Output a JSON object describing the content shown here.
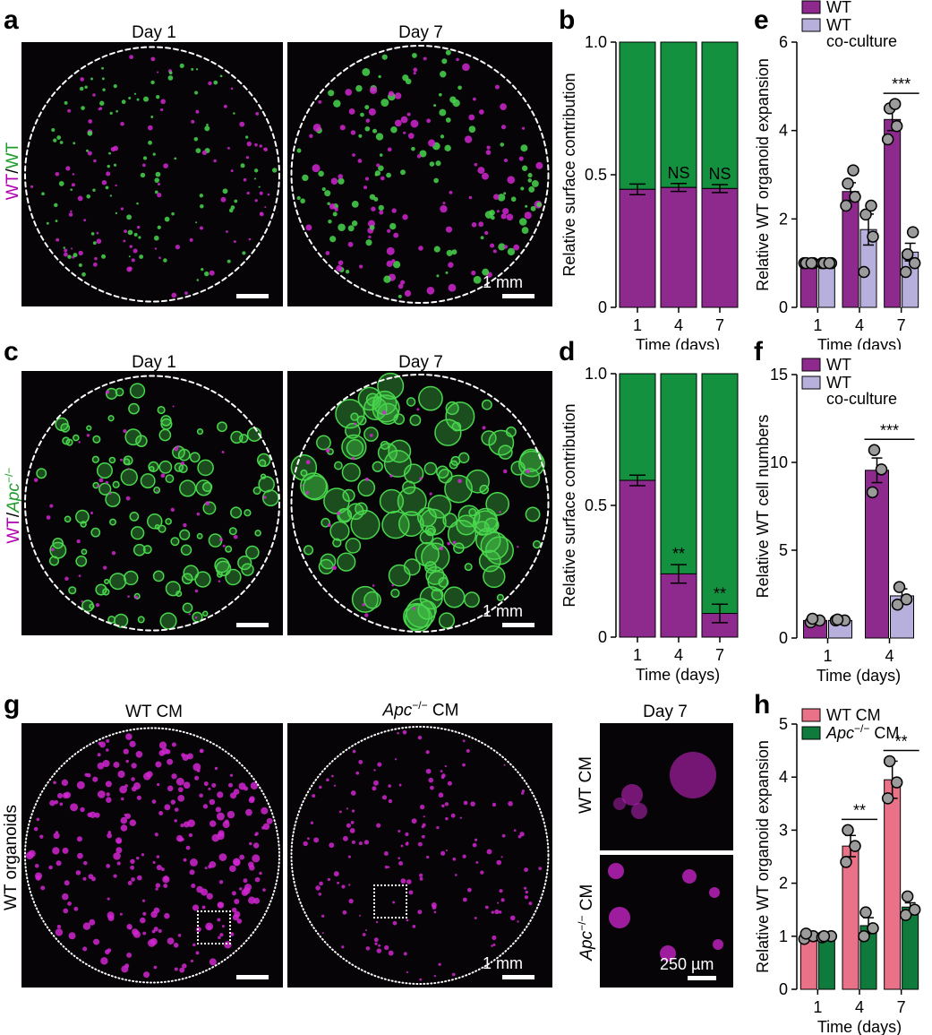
{
  "colors": {
    "purple": "#8e2a8e",
    "green": "#13913f",
    "lavender": "#b7b0dc",
    "pink": "#ea7288",
    "darkgreen": "#0e7a3c",
    "magenta_signal": "#d126d1",
    "green_signal": "#49d64d"
  },
  "panels": {
    "a": {
      "letter": "a",
      "day1": "Day 1",
      "day7": "Day 7",
      "side_label_part1": "WT",
      "side_label_sep": "/",
      "side_label_part2": "WT",
      "scale": "1 mm"
    },
    "c": {
      "letter": "c",
      "day1": "Day 1",
      "day7": "Day 7",
      "side_label_part1": "WT",
      "side_label_sep": "/",
      "side_label_part2": "Apc",
      "side_label_sup": "−/−",
      "scale": "1 mm"
    },
    "g": {
      "letter": "g",
      "title_left": "WT CM",
      "title_mid_italic": "Apc",
      "title_mid_sup": "−/−",
      "title_mid_rest": " CM",
      "title_right": "Day 7",
      "side_label": "WT organoids",
      "inset_top_label": "WT CM",
      "inset_bottom_italic": "Apc",
      "inset_bottom_sup": "−/−",
      "inset_bottom_rest": " CM",
      "scale": "1 mm",
      "scale_inset": "250 µm"
    },
    "b": {
      "letter": "b"
    },
    "d": {
      "letter": "d"
    },
    "e": {
      "letter": "e"
    },
    "f": {
      "letter": "f"
    },
    "h": {
      "letter": "h"
    }
  },
  "chart_data": [
    {
      "id": "b",
      "type": "bar",
      "stacked": true,
      "categories": [
        "1",
        "4",
        "7"
      ],
      "series": [
        {
          "values": [
            0.445,
            0.452,
            0.448
          ],
          "errors": [
            0.02,
            0.015,
            0.015
          ]
        },
        {
          "values": [
            0.555,
            0.548,
            0.552
          ]
        }
      ],
      "annotations": [
        "",
        "NS",
        "NS"
      ],
      "xlabel": "Time (days)",
      "ylabel": "Relative surface contribution",
      "ylim": [
        0,
        1
      ],
      "yticks": [
        "0",
        "0.5",
        "1.0"
      ]
    },
    {
      "id": "d",
      "type": "bar",
      "stacked": true,
      "categories": [
        "1",
        "4",
        "7"
      ],
      "series": [
        {
          "values": [
            0.595,
            0.24,
            0.09
          ],
          "errors": [
            0.02,
            0.035,
            0.035
          ]
        },
        {
          "values": [
            0.405,
            0.76,
            0.91
          ]
        }
      ],
      "annotations": [
        "",
        "**",
        "**"
      ],
      "xlabel": "Time (days)",
      "ylabel": "Relative surface contribution",
      "ylim": [
        0,
        1
      ],
      "yticks": [
        "0",
        "0.5",
        "1.0"
      ]
    },
    {
      "id": "e",
      "type": "bar",
      "grouped": true,
      "categories": [
        "1",
        "4",
        "7"
      ],
      "series": [
        {
          "name": "WT",
          "values": [
            1.0,
            2.62,
            4.25
          ],
          "errors": [
            0.03,
            0.2,
            0.25
          ],
          "points": [
            [
              1.0,
              1.0,
              1.0,
              1.0
            ],
            [
              2.3,
              2.5,
              2.8,
              3.1
            ],
            [
              3.8,
              4.1,
              4.5,
              4.6
            ]
          ]
        },
        {
          "name": "WT\nco-culture",
          "values": [
            1.0,
            1.76,
            1.25
          ],
          "errors": [
            0.03,
            0.35,
            0.2
          ],
          "points": [
            [
              1.0,
              1.0,
              1.0,
              1.0
            ],
            [
              0.8,
              1.6,
              2.1,
              2.3
            ],
            [
              0.8,
              1.0,
              1.2,
              1.7
            ]
          ]
        }
      ],
      "significance": [
        {
          "category": "7",
          "label": "***"
        }
      ],
      "xlabel": "Time (days)",
      "ylabel": "Relative WT organoid expansion",
      "ylim": [
        0,
        6
      ],
      "yticks": [
        "0",
        "2",
        "4",
        "6"
      ]
    },
    {
      "id": "f",
      "type": "bar",
      "grouped": true,
      "categories": [
        "1",
        "4"
      ],
      "series": [
        {
          "name": "WT",
          "values": [
            1.0,
            9.55
          ],
          "errors": [
            0.05,
            0.7
          ],
          "points": [
            [
              0.9,
              1.0,
              1.1
            ],
            [
              8.3,
              9.6,
              10.7
            ]
          ]
        },
        {
          "name": "WT\nco-culture",
          "values": [
            1.0,
            2.4
          ],
          "errors": [
            0.05,
            0.4
          ],
          "points": [
            [
              1.0,
              1.0,
              1.05
            ],
            [
              1.9,
              2.2,
              2.9
            ]
          ]
        }
      ],
      "significance": [
        {
          "category": "4",
          "label": "***"
        }
      ],
      "xlabel": "Time (days)",
      "ylabel": "Relative WT cell numbers",
      "ylim": [
        0,
        15
      ],
      "yticks": [
        "0",
        "5",
        "10",
        "15"
      ]
    },
    {
      "id": "h",
      "type": "bar",
      "grouped": true,
      "categories": [
        "1",
        "4",
        "7"
      ],
      "series": [
        {
          "name": "WT CM",
          "values": [
            1.0,
            2.7,
            3.95
          ],
          "errors": [
            0.05,
            0.2,
            0.35
          ],
          "points": [
            [
              0.95,
              1.0,
              1.05
            ],
            [
              2.4,
              2.7,
              3.0
            ],
            [
              3.6,
              3.9,
              4.3
            ]
          ]
        },
        {
          "name": "Apc−/− CM",
          "values": [
            1.0,
            1.2,
            1.55
          ],
          "errors": [
            0.03,
            0.15,
            0.08
          ],
          "points": [
            [
              0.98,
              1.0,
              1.0
            ],
            [
              1.0,
              1.15,
              1.45
            ],
            [
              1.4,
              1.5,
              1.75
            ]
          ]
        }
      ],
      "significance": [
        {
          "category": "4",
          "label": "**"
        },
        {
          "category": "7",
          "label": "**"
        }
      ],
      "xlabel": "Time (days)",
      "ylabel": "Relative WT organoid expansion",
      "ylim": [
        0,
        5
      ],
      "yticks": [
        "0",
        "1",
        "2",
        "3",
        "4",
        "5"
      ]
    }
  ]
}
